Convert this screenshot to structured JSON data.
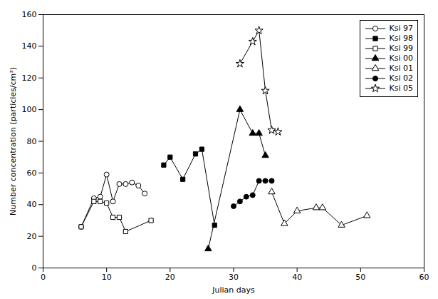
{
  "chart_data": {
    "type": "line",
    "xlabel": "Julian days",
    "ylabel": "Number concentration (particles/cm³)",
    "xlim": [
      0,
      60
    ],
    "ylim": [
      0,
      160
    ],
    "xticks": [
      0,
      10,
      20,
      30,
      40,
      50,
      60
    ],
    "yticks": [
      0,
      20,
      40,
      60,
      80,
      100,
      120,
      140,
      160
    ],
    "grid": false,
    "legend": "upper right",
    "series": [
      {
        "name": "Ksi 97",
        "color": "#000000",
        "marker": "circle-open",
        "line_style": "solid",
        "x": [
          6,
          8,
          9,
          10,
          11,
          12,
          13,
          14,
          15,
          16
        ],
        "values": [
          26,
          44,
          45,
          59,
          42,
          53,
          53,
          54,
          52,
          47
        ]
      },
      {
        "name": "Ksi 98",
        "color": "#000000",
        "marker": "square-filled",
        "line_style": "solid",
        "x": [
          19,
          20,
          22,
          24,
          25,
          27
        ],
        "values": [
          65,
          70,
          56,
          72,
          75,
          27
        ]
      },
      {
        "name": "Ksi 99",
        "color": "#000000",
        "marker": "square-open",
        "line_style": "solid",
        "x": [
          6,
          8,
          9,
          10,
          11,
          12,
          13,
          17
        ],
        "values": [
          26,
          42,
          42,
          41,
          32,
          32,
          23,
          30
        ]
      },
      {
        "name": "Ksi 00",
        "color": "#000000",
        "marker": "triangle-filled",
        "line_style": "solid",
        "x": [
          26,
          31,
          33,
          34,
          35
        ],
        "values": [
          12,
          100,
          85,
          85,
          71
        ]
      },
      {
        "name": "Ksi 01",
        "color": "#000000",
        "marker": "triangle-open",
        "line_style": "solid",
        "x": [
          36,
          38,
          40,
          43,
          44,
          47,
          51
        ],
        "values": [
          48,
          28,
          36,
          38,
          38,
          27,
          33
        ]
      },
      {
        "name": "Ksi 02",
        "color": "#000000",
        "marker": "circle-filled",
        "line_style": "solid",
        "x": [
          30,
          31,
          32,
          33,
          34,
          35,
          36
        ],
        "values": [
          39,
          42,
          45,
          46,
          55,
          55,
          55
        ]
      },
      {
        "name": "Ksi 05",
        "color": "#000000",
        "marker": "star-open",
        "line_style": "solid",
        "x": [
          31,
          33,
          34,
          35,
          36,
          37
        ],
        "values": [
          129,
          143,
          150,
          112,
          87,
          86
        ]
      }
    ]
  }
}
